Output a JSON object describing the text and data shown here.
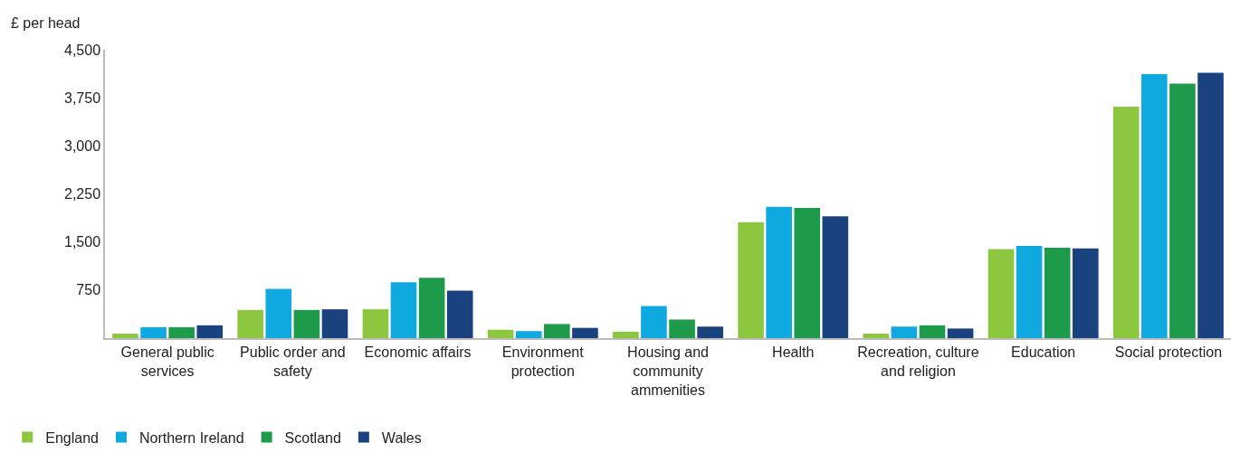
{
  "chart_data": {
    "type": "bar",
    "ylabel": "£ per head",
    "categories": [
      "General public services",
      "Public order and safety",
      "Economic affairs",
      "Environment protection",
      "Housing and community ammenities",
      "Health",
      "Recreation, culture and religion",
      "Education",
      "Social protection"
    ],
    "series": [
      {
        "name": "England",
        "color": "#8dc63f",
        "values": [
          70,
          440,
          450,
          130,
          100,
          1810,
          70,
          1390,
          3610
        ]
      },
      {
        "name": "Northern Ireland",
        "color": "#0fa9e0",
        "values": [
          170,
          770,
          870,
          110,
          500,
          2050,
          180,
          1440,
          4120
        ]
      },
      {
        "name": "Scotland",
        "color": "#1d9a4a",
        "values": [
          170,
          440,
          940,
          220,
          290,
          2030,
          200,
          1410,
          3970
        ]
      },
      {
        "name": "Wales",
        "color": "#1a427e",
        "values": [
          200,
          450,
          740,
          160,
          180,
          1900,
          150,
          1400,
          4140
        ]
      }
    ],
    "ylim": [
      0,
      4500
    ],
    "yticks": [
      750,
      {
        "value": 1500,
        "label": "1,500"
      },
      {
        "value": 2250,
        "label": "2,250"
      },
      {
        "value": 3000,
        "label": "3,000"
      },
      {
        "value": 3750,
        "label": "3,750"
      },
      {
        "value": 4500,
        "label": "4,500"
      }
    ],
    "legend": "bottom left"
  }
}
